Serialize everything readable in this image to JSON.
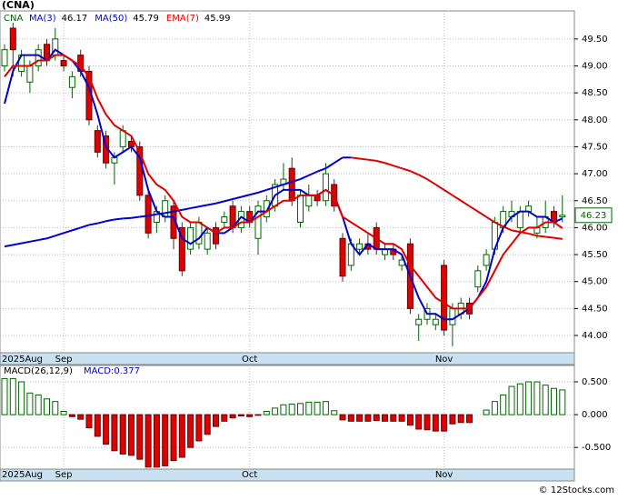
{
  "title": "(CNA)",
  "footer": "© 12Stocks.com",
  "chart_data": [
    {
      "type": "candlestick",
      "symbol": "CNA",
      "grid": true,
      "categories": [
        "2025Aug",
        null,
        null,
        null,
        null,
        null,
        null,
        "Sep",
        null,
        null,
        null,
        null,
        null,
        null,
        null,
        null,
        null,
        null,
        null,
        null,
        null,
        null,
        null,
        null,
        null,
        null,
        null,
        null,
        null,
        "Oct",
        null,
        null,
        null,
        null,
        null,
        null,
        null,
        null,
        null,
        null,
        null,
        null,
        null,
        null,
        null,
        null,
        null,
        null,
        null,
        null,
        null,
        null,
        "Nov",
        null,
        null,
        null,
        null,
        null,
        null,
        null,
        null,
        null,
        null,
        null,
        null,
        null,
        null
      ],
      "open": [
        49.0,
        49.7,
        48.9,
        48.7,
        49.0,
        49.4,
        49.2,
        49.1,
        48.6,
        49.2,
        48.9,
        47.8,
        47.7,
        47.2,
        47.5,
        47.6,
        47.5,
        46.6,
        46.1,
        46.2,
        46.4,
        46.0,
        45.6,
        45.7,
        45.6,
        46.0,
        46.1,
        46.4,
        46.0,
        46.3,
        45.8,
        46.2,
        46.4,
        46.8,
        47.1,
        46.1,
        46.4,
        46.6,
        46.5,
        46.8,
        45.8,
        45.3,
        45.6,
        45.7,
        46.0,
        45.5,
        45.6,
        45.3,
        45.7,
        44.2,
        44.3,
        44.2,
        45.3,
        44.2,
        44.4,
        44.6,
        44.9,
        45.3,
        45.6,
        46.0,
        46.2,
        46.0,
        46.3,
        45.9,
        46.0,
        46.3,
        46.2
      ],
      "high": [
        49.4,
        49.8,
        49.3,
        49.1,
        49.4,
        49.5,
        49.7,
        49.2,
        48.9,
        49.3,
        49.0,
        47.9,
        47.8,
        47.4,
        47.9,
        47.7,
        47.6,
        46.7,
        46.4,
        46.6,
        46.5,
        46.1,
        46.1,
        46.2,
        46.0,
        46.1,
        46.3,
        46.5,
        46.4,
        46.4,
        46.5,
        46.6,
        46.9,
        47.2,
        47.3,
        46.7,
        46.8,
        46.7,
        47.2,
        46.9,
        45.9,
        45.8,
        45.8,
        45.9,
        46.1,
        45.7,
        45.7,
        45.5,
        45.8,
        44.4,
        44.6,
        44.4,
        45.4,
        44.6,
        44.7,
        44.7,
        45.3,
        45.6,
        46.2,
        46.4,
        46.5,
        46.4,
        46.5,
        46.2,
        46.5,
        46.4,
        46.6
      ],
      "low": [
        48.9,
        48.8,
        48.8,
        48.5,
        48.9,
        49.0,
        49.1,
        48.9,
        48.4,
        48.8,
        47.9,
        47.3,
        47.1,
        46.8,
        47.4,
        47.4,
        46.5,
        45.8,
        45.9,
        46.1,
        45.6,
        45.1,
        45.5,
        45.6,
        45.5,
        45.6,
        46.0,
        45.9,
        45.9,
        46.0,
        45.5,
        46.1,
        46.3,
        46.7,
        46.4,
        46.0,
        46.3,
        46.4,
        46.4,
        46.3,
        45.0,
        45.2,
        45.5,
        45.5,
        45.5,
        45.4,
        45.4,
        45.2,
        44.4,
        43.9,
        44.2,
        44.1,
        44.0,
        43.8,
        44.3,
        44.3,
        44.8,
        45.2,
        45.5,
        45.9,
        46.1,
        45.9,
        46.2,
        45.8,
        45.9,
        46.0,
        46.1
      ],
      "close": [
        49.3,
        49.3,
        49.2,
        49.0,
        49.3,
        49.1,
        49.5,
        49.0,
        48.8,
        48.9,
        48.0,
        47.4,
        47.2,
        47.3,
        47.8,
        47.5,
        46.6,
        45.9,
        46.3,
        46.5,
        45.8,
        45.2,
        46.0,
        46.1,
        45.9,
        45.7,
        46.2,
        46.0,
        46.3,
        46.1,
        46.4,
        46.5,
        46.8,
        46.9,
        46.5,
        46.6,
        46.6,
        46.5,
        47.0,
        46.4,
        45.1,
        45.7,
        45.7,
        45.6,
        45.6,
        45.6,
        45.5,
        45.4,
        44.5,
        44.3,
        44.5,
        44.3,
        44.1,
        44.5,
        44.6,
        44.4,
        45.2,
        45.5,
        46.1,
        46.3,
        46.3,
        46.3,
        46.4,
        46.0,
        46.2,
        46.1,
        46.23
      ],
      "up_color": "#006400",
      "down_color": "#e00000",
      "series": [
        {
          "name": "MA(3)",
          "color": "#0000cc",
          "values": [
            48.3,
            48.9,
            49.2,
            49.2,
            49.2,
            49.1,
            49.3,
            49.2,
            49.1,
            48.9,
            48.6,
            48.1,
            47.5,
            47.3,
            47.4,
            47.5,
            47.3,
            46.7,
            46.3,
            46.2,
            46.2,
            45.8,
            45.7,
            45.8,
            46.0,
            45.9,
            45.9,
            46.0,
            46.2,
            46.1,
            46.3,
            46.3,
            46.6,
            46.7,
            46.7,
            46.7,
            46.6,
            46.6,
            46.7,
            46.6,
            46.2,
            45.7,
            45.5,
            45.7,
            45.6,
            45.6,
            45.6,
            45.5,
            45.1,
            44.7,
            44.4,
            44.4,
            44.3,
            44.3,
            44.4,
            44.5,
            44.7,
            45.0,
            45.6,
            46.0,
            46.2,
            46.3,
            46.3,
            46.2,
            46.2,
            46.1,
            46.17
          ]
        },
        {
          "name": "MA(50)",
          "color": "#0000cc",
          "falling_color": "#e00000",
          "values": [
            45.65,
            45.68,
            45.71,
            45.74,
            45.77,
            45.8,
            45.85,
            45.9,
            45.95,
            46.0,
            46.05,
            46.08,
            46.12,
            46.15,
            46.17,
            46.18,
            46.2,
            46.22,
            46.25,
            46.27,
            46.3,
            46.33,
            46.36,
            46.39,
            46.42,
            46.45,
            46.49,
            46.53,
            46.57,
            46.61,
            46.65,
            46.7,
            46.75,
            46.8,
            46.85,
            46.9,
            46.97,
            47.04,
            47.1,
            47.2,
            47.3,
            47.3,
            47.28,
            47.26,
            47.24,
            47.2,
            47.15,
            47.1,
            47.05,
            46.98,
            46.9,
            46.8,
            46.7,
            46.6,
            46.5,
            46.4,
            46.3,
            46.2,
            46.1,
            46.02,
            45.95,
            45.92,
            45.89,
            45.85,
            45.83,
            45.81,
            45.79
          ]
        },
        {
          "name": "EMA(7)",
          "color": "#e00000",
          "values": [
            48.8,
            49.0,
            49.0,
            49.0,
            49.1,
            49.1,
            49.2,
            49.2,
            49.1,
            49.0,
            48.8,
            48.4,
            48.1,
            47.9,
            47.8,
            47.7,
            47.4,
            47.0,
            46.8,
            46.7,
            46.5,
            46.2,
            46.1,
            46.1,
            46.0,
            45.9,
            46.0,
            46.0,
            46.1,
            46.1,
            46.2,
            46.3,
            46.4,
            46.5,
            46.5,
            46.6,
            46.6,
            46.6,
            46.7,
            46.6,
            46.2,
            46.1,
            46.0,
            45.9,
            45.8,
            45.7,
            45.7,
            45.6,
            45.3,
            45.1,
            44.9,
            44.7,
            44.6,
            44.5,
            44.5,
            44.5,
            44.7,
            44.9,
            45.2,
            45.5,
            45.7,
            45.9,
            46.0,
            46.0,
            46.1,
            46.1,
            45.99
          ]
        }
      ],
      "ylim": [
        43.68,
        50.02
      ],
      "yticks": [
        {
          "value": 44,
          "label": "44.00"
        },
        {
          "value": 44.5,
          "label": "44.50"
        },
        {
          "value": 45,
          "label": "45.00"
        },
        {
          "value": 45.5,
          "label": "45.50"
        },
        {
          "value": 46,
          "label": "46.00"
        },
        {
          "value": 46.5,
          "label": "46.50"
        },
        {
          "value": 47,
          "label": "47.00"
        },
        {
          "value": 47.5,
          "label": "47.50"
        },
        {
          "value": 48,
          "label": "48.00"
        },
        {
          "value": 48.5,
          "label": "48.50"
        },
        {
          "value": 49,
          "label": "49.00"
        },
        {
          "value": 49.5,
          "label": "49.50"
        }
      ]
    },
    {
      "type": "bar",
      "title": "MACD(26,12,9)",
      "value_name": "MACD:",
      "grid": true,
      "categories": [
        "2025Aug",
        null,
        null,
        null,
        null,
        null,
        null,
        "Sep",
        null,
        null,
        null,
        null,
        null,
        null,
        null,
        null,
        null,
        null,
        null,
        null,
        null,
        null,
        null,
        null,
        null,
        null,
        null,
        null,
        null,
        "Oct",
        null,
        null,
        null,
        null,
        null,
        null,
        null,
        null,
        null,
        null,
        null,
        null,
        null,
        null,
        null,
        null,
        null,
        null,
        null,
        null,
        null,
        null,
        "Nov",
        null,
        null,
        null,
        null,
        null,
        null,
        null,
        null,
        null,
        null,
        null,
        null,
        null,
        null
      ],
      "values": [
        0.55,
        0.55,
        0.5,
        0.33,
        0.3,
        0.24,
        0.2,
        0.05,
        -0.03,
        -0.07,
        -0.2,
        -0.33,
        -0.45,
        -0.55,
        -0.6,
        -0.62,
        -0.68,
        -0.8,
        -0.8,
        -0.78,
        -0.7,
        -0.65,
        -0.5,
        -0.4,
        -0.3,
        -0.18,
        -0.1,
        -0.05,
        -0.02,
        -0.03,
        -0.01,
        0.05,
        0.1,
        0.15,
        0.16,
        0.17,
        0.19,
        0.19,
        0.2,
        0.06,
        -0.08,
        -0.1,
        -0.1,
        -0.1,
        -0.09,
        -0.1,
        -0.1,
        -0.1,
        -0.16,
        -0.22,
        -0.23,
        -0.25,
        -0.25,
        -0.14,
        -0.12,
        -0.12,
        0.0,
        0.07,
        0.2,
        0.3,
        0.43,
        0.47,
        0.5,
        0.5,
        0.45,
        0.4,
        0.377
      ],
      "up_color": "#006400",
      "down_color": "#e00000",
      "ylim": [
        -0.83,
        0.75
      ],
      "yticks": [
        {
          "value": -0.5,
          "label": "-0.500"
        },
        {
          "value": 0,
          "label": "0.000"
        },
        {
          "value": 0.5,
          "label": "0.500"
        }
      ]
    }
  ]
}
